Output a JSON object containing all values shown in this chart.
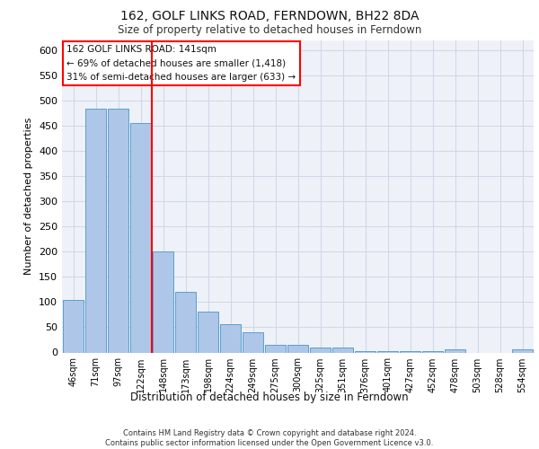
{
  "title": "162, GOLF LINKS ROAD, FERNDOWN, BH22 8DA",
  "subtitle": "Size of property relative to detached houses in Ferndown",
  "xlabel_bottom": "Distribution of detached houses by size in Ferndown",
  "ylabel": "Number of detached properties",
  "categories": [
    "46sqm",
    "71sqm",
    "97sqm",
    "122sqm",
    "148sqm",
    "173sqm",
    "198sqm",
    "224sqm",
    "249sqm",
    "275sqm",
    "300sqm",
    "325sqm",
    "351sqm",
    "376sqm",
    "401sqm",
    "427sqm",
    "452sqm",
    "478sqm",
    "503sqm",
    "528sqm",
    "554sqm"
  ],
  "values": [
    105,
    485,
    485,
    455,
    200,
    120,
    82,
    57,
    40,
    15,
    15,
    10,
    10,
    2,
    2,
    2,
    2,
    7,
    0,
    0,
    7
  ],
  "bar_color": "#aec6e8",
  "bar_edge_color": "#5a9fd4",
  "grid_color": "#d0d8e8",
  "background_color": "#eef2f8",
  "red_line_index": 4,
  "annotation_lines": [
    "162 GOLF LINKS ROAD: 141sqm",
    "← 69% of detached houses are smaller (1,418)",
    "31% of semi-detached houses are larger (633) →"
  ],
  "footer_line1": "Contains HM Land Registry data © Crown copyright and database right 2024.",
  "footer_line2": "Contains public sector information licensed under the Open Government Licence v3.0.",
  "ylim": [
    0,
    620
  ],
  "yticks": [
    0,
    50,
    100,
    150,
    200,
    250,
    300,
    350,
    400,
    450,
    500,
    550,
    600
  ]
}
